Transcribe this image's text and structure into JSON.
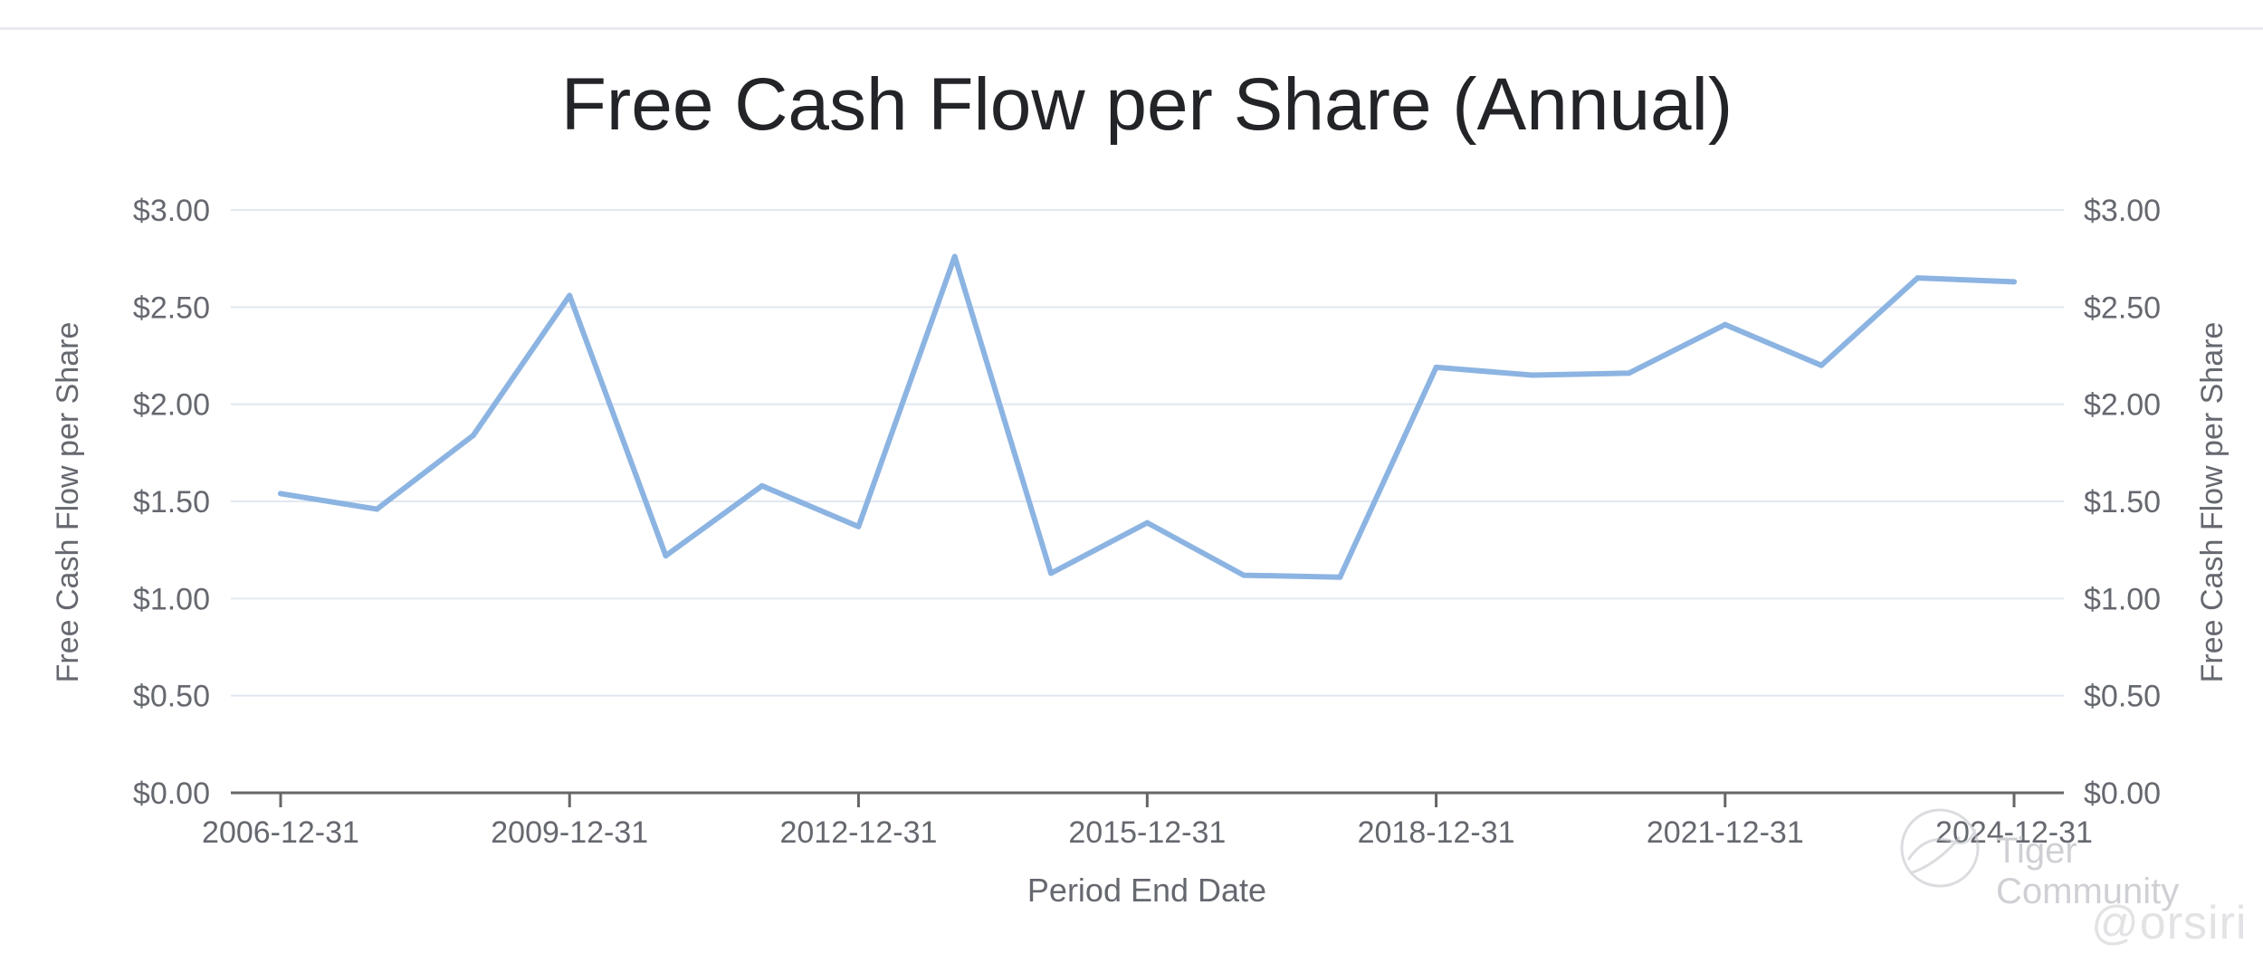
{
  "chart_data": {
    "type": "line",
    "title": "Free Cash Flow per Share (Annual)",
    "xlabel": "Period End Date",
    "ylabel": "Free Cash Flow per Share",
    "ylabel_right": "Free Cash Flow per Share",
    "x_tick_labels": [
      "2006-12-31",
      "2009-12-31",
      "2012-12-31",
      "2015-12-31",
      "2018-12-31",
      "2021-12-31",
      "2024-12-31"
    ],
    "y_tick_labels": [
      "$0.00",
      "$0.50",
      "$1.00",
      "$1.50",
      "$2.00",
      "$2.50",
      "$3.00"
    ],
    "ylim": [
      0,
      3
    ],
    "grid": true,
    "series": [
      {
        "color": "#8cb4e2",
        "x": [
          "2006-12-31",
          "2007-12-31",
          "2008-12-31",
          "2009-12-31",
          "2010-12-31",
          "2011-12-31",
          "2012-12-31",
          "2013-12-31",
          "2014-12-31",
          "2015-12-31",
          "2016-12-31",
          "2017-12-31",
          "2018-12-31",
          "2019-12-31",
          "2020-12-31",
          "2021-12-31",
          "2022-12-31",
          "2023-12-31",
          "2024-12-31"
        ],
        "values": [
          1.54,
          1.46,
          1.84,
          2.56,
          1.22,
          1.58,
          1.37,
          2.76,
          1.13,
          1.39,
          1.12,
          1.11,
          2.19,
          2.15,
          2.16,
          2.41,
          2.2,
          2.65,
          2.63
        ]
      }
    ]
  },
  "watermark": {
    "community_text": "Tiger Community",
    "user_text": "@orsiri",
    "logo_icon": "tiger-community-logo-icon"
  },
  "colors": {
    "title": "#222428",
    "axis_text": "#666870",
    "grid": "#e1e8f0",
    "axis_line": "#666666",
    "line": "#8cb4e2"
  }
}
